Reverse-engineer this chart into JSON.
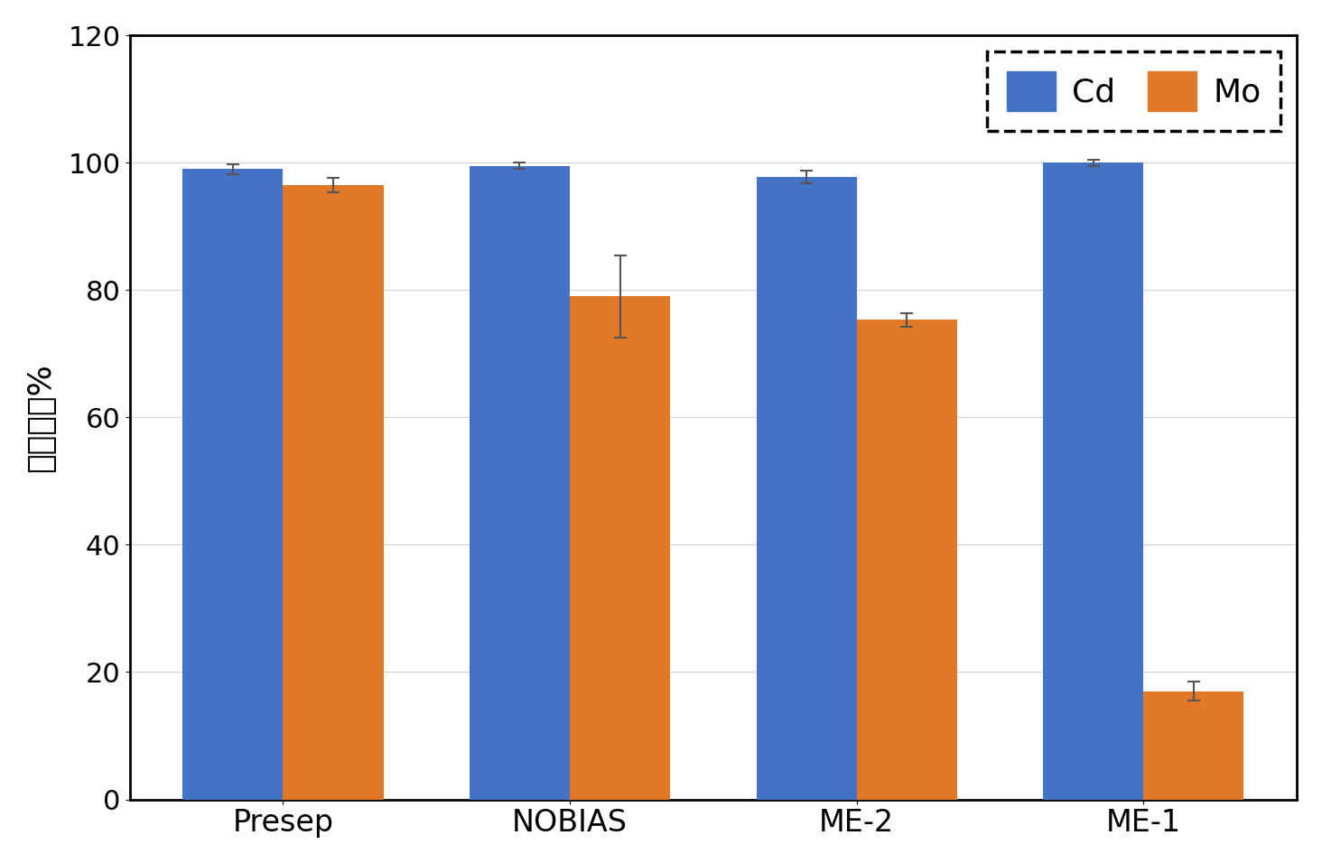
{
  "categories": [
    "Presep",
    "NOBIAS",
    "ME-2",
    "ME-1"
  ],
  "cd_values": [
    99.0,
    99.5,
    97.8,
    100.0
  ],
  "mo_values": [
    96.5,
    79.0,
    75.3,
    17.0
  ],
  "cd_errors": [
    0.8,
    0.5,
    1.0,
    0.5
  ],
  "mo_errors": [
    1.2,
    6.5,
    1.0,
    1.5
  ],
  "cd_color": "#4472C4",
  "mo_color": "#E07828",
  "ylabel": "回収率，%",
  "ylim": [
    0,
    120
  ],
  "yticks": [
    0,
    20,
    40,
    60,
    80,
    100,
    120
  ],
  "bar_width": 0.35,
  "legend_labels": [
    "Cd",
    "Mo"
  ],
  "background_color": "#ffffff",
  "plot_bg_color": "#ffffff",
  "grid_color": "#d0d0d0",
  "ylabel_fontsize": 26,
  "tick_fontsize": 22,
  "legend_fontsize": 26,
  "xtick_fontsize": 24
}
